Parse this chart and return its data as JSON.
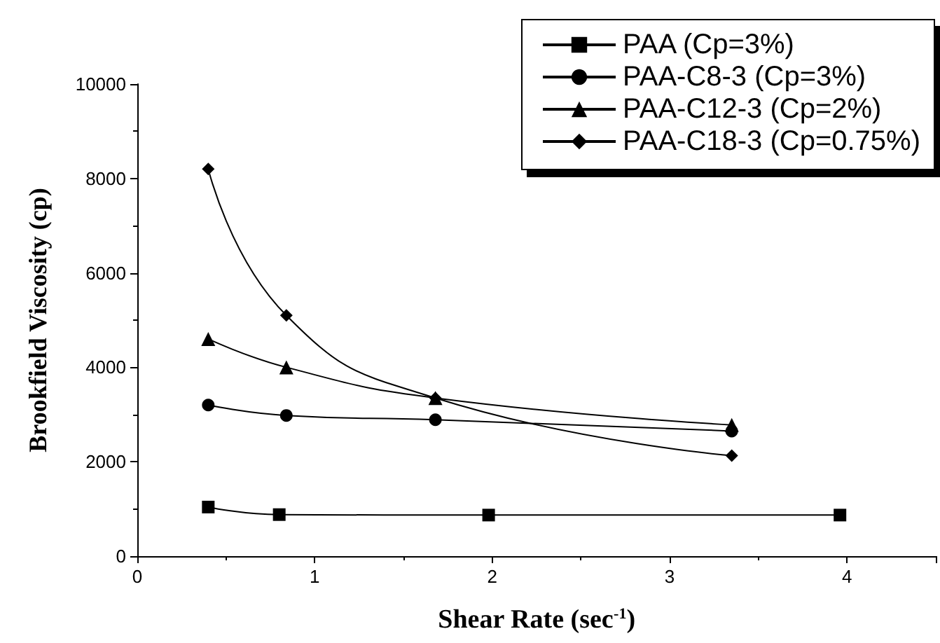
{
  "chart_data": {
    "type": "line",
    "xlabel": "Shear Rate (sec$^{-1}$)",
    "ylabel": "Brookfield Viscosity (cp)",
    "xlim": [
      0,
      4.5
    ],
    "xticks": [
      0,
      1,
      2,
      3,
      4
    ],
    "ylim": [
      0,
      10000
    ],
    "yticks": [
      0,
      2000,
      4000,
      6000,
      8000,
      10000
    ],
    "grid": false,
    "legend": "top right",
    "series": [
      {
        "name": "PAA (Cp=3%)",
        "color": "#000000",
        "marker": "square",
        "x": [
          0.4,
          0.8,
          1.98,
          3.96
        ],
        "values": [
          1040,
          880,
          870,
          870
        ]
      },
      {
        "name": "PAA-C8-3 (Cp=3%)",
        "color": "#000000",
        "marker": "circle",
        "x": [
          0.4,
          0.84,
          1.68,
          3.35
        ],
        "values": [
          3200,
          2980,
          2890,
          2650
        ]
      },
      {
        "name": "PAA-C12-3 (Cp=2%)",
        "color": "#000000",
        "marker": "triangle",
        "x": [
          0.4,
          0.84,
          1.68,
          3.35
        ],
        "values": [
          4600,
          4000,
          3350,
          2780
        ]
      },
      {
        "name": "PAA-C18-3 (Cp=0.75%)",
        "color": "#000000",
        "marker": "diamond",
        "x": [
          0.4,
          0.84,
          1.68,
          3.35
        ],
        "values": [
          8200,
          5100,
          3350,
          2130
        ]
      }
    ]
  }
}
